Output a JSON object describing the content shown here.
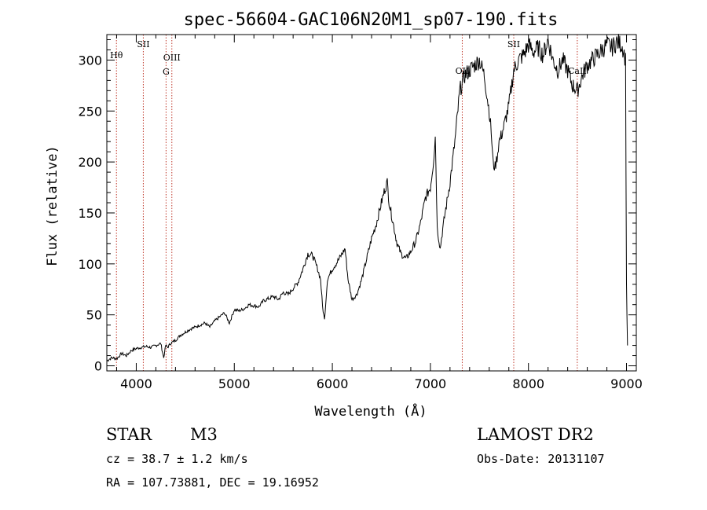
{
  "chart_data": {
    "type": "line",
    "title": "spec-56604-GAC106N20M1_sp07-190.fits",
    "xlabel": "Wavelength (Å)",
    "ylabel": "Flux (relative)",
    "xlim": [
      3700,
      9100
    ],
    "ylim": [
      -5,
      325
    ],
    "xticks": [
      4000,
      5000,
      6000,
      7000,
      8000,
      9000
    ],
    "yticks": [
      0,
      50,
      100,
      150,
      200,
      250,
      300
    ],
    "grid": false,
    "spectral_lines": [
      {
        "label": "Hθ",
        "wavelength": 3798
      },
      {
        "label": "SII",
        "wavelength": 4072
      },
      {
        "label": "G",
        "wavelength": 4304
      },
      {
        "label": "OIII",
        "wavelength": 4363
      },
      {
        "label": "OII",
        "wavelength": 7325
      },
      {
        "label": "SII",
        "wavelength": 7850
      },
      {
        "label": "CaII",
        "wavelength": 8498
      }
    ],
    "series": [
      {
        "x": [
          3700,
          3750,
          3800,
          3850,
          3900,
          3950,
          4000,
          4050,
          4100,
          4150,
          4200,
          4250,
          4280,
          4300,
          4320,
          4350,
          4400,
          4450,
          4500,
          4550,
          4600,
          4650,
          4700,
          4750,
          4800,
          4850,
          4900,
          4950,
          5000,
          5050,
          5100,
          5150,
          5200,
          5250,
          5300,
          5350,
          5400,
          5450,
          5500,
          5550,
          5600,
          5650,
          5700,
          5750,
          5800,
          5830,
          5850,
          5880,
          5900,
          5920,
          5950,
          6000,
          6050,
          6100,
          6130,
          6160,
          6200,
          6250,
          6300,
          6350,
          6400,
          6450,
          6500,
          6540,
          6560,
          6580,
          6620,
          6660,
          6700,
          6750,
          6800,
          6850,
          6900,
          6950,
          7000,
          7030,
          7050,
          7070,
          7100,
          7120,
          7150,
          7200,
          7250,
          7300,
          7350,
          7400,
          7450,
          7500,
          7550,
          7600,
          7620,
          7640,
          7660,
          7680,
          7700,
          7720,
          7750,
          7800,
          7850,
          7900,
          7950,
          8000,
          8050,
          8100,
          8150,
          8200,
          8250,
          8300,
          8350,
          8400,
          8450,
          8500,
          8550,
          8600,
          8650,
          8700,
          8750,
          8800,
          8850,
          8900,
          8950,
          8970,
          8990,
          9000,
          9010
        ],
        "y": [
          5,
          8,
          7,
          12,
          10,
          15,
          17,
          18,
          19,
          18,
          20,
          22,
          8,
          20,
          18,
          22,
          25,
          30,
          33,
          36,
          38,
          40,
          42,
          38,
          44,
          48,
          52,
          42,
          55,
          54,
          56,
          60,
          59,
          58,
          64,
          66,
          68,
          65,
          72,
          70,
          76,
          82,
          95,
          110,
          108,
          100,
          95,
          85,
          58,
          45,
          85,
          95,
          102,
          110,
          115,
          85,
          65,
          70,
          85,
          105,
          125,
          140,
          160,
          175,
          180,
          160,
          140,
          120,
          110,
          105,
          112,
          122,
          140,
          165,
          175,
          200,
          225,
          135,
          115,
          130,
          150,
          180,
          220,
          270,
          285,
          290,
          295,
          300,
          285,
          250,
          230,
          198,
          195,
          205,
          220,
          225,
          235,
          255,
          290,
          300,
          305,
          315,
          308,
          312,
          305,
          320,
          300,
          290,
          300,
          290,
          275,
          270,
          285,
          295,
          300,
          305,
          310,
          315,
          312,
          318,
          315,
          310,
          300,
          80,
          20
        ]
      }
    ]
  },
  "footer": {
    "object_class": "STAR",
    "subclass": "M3",
    "survey": "LAMOST DR2",
    "cz": "cz = 38.7 ± 1.2 km/s",
    "obs_date": "Obs-Date: 20131107",
    "coords": "RA = 107.73881, DEC =  19.16952"
  }
}
